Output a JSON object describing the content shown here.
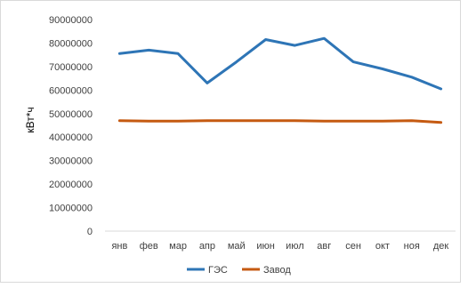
{
  "chart_data": {
    "type": "line",
    "title": "",
    "xlabel": "",
    "ylabel": "кВт*ч",
    "categories": [
      "янв",
      "фев",
      "мар",
      "апр",
      "май",
      "июн",
      "июл",
      "авг",
      "сен",
      "окт",
      "ноя",
      "дек"
    ],
    "ylim": [
      0,
      90000000
    ],
    "yticks": [
      0,
      10000000,
      20000000,
      30000000,
      40000000,
      50000000,
      60000000,
      70000000,
      80000000,
      90000000
    ],
    "grid": false,
    "legend": "bottom",
    "series": [
      {
        "name": "ГЭС",
        "color": "#2e75b6",
        "values": [
          75500000,
          77000000,
          75500000,
          63000000,
          72000000,
          81500000,
          79000000,
          82000000,
          72000000,
          69000000,
          65500000,
          60500000
        ]
      },
      {
        "name": "Завод",
        "color": "#c55a11",
        "values": [
          47000000,
          46800000,
          46800000,
          47000000,
          47000000,
          47000000,
          47000000,
          46800000,
          46800000,
          46800000,
          47000000,
          46200000
        ]
      }
    ]
  }
}
